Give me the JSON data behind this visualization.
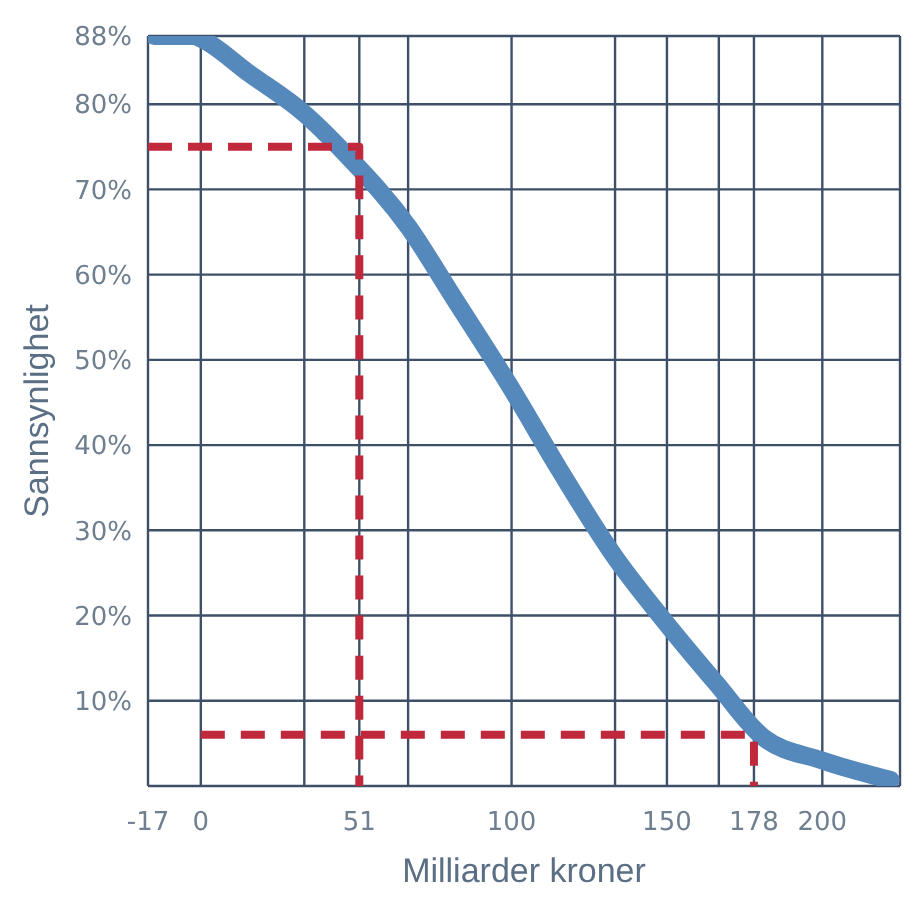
{
  "chart_data": {
    "type": "line",
    "xlabel": "Milliarder kroner",
    "ylabel": "Sannsynlighet",
    "xlim": [
      -17,
      225
    ],
    "ylim": [
      0,
      88
    ],
    "xticks": [
      -17,
      0,
      {
        "value": 33.3,
        "label": null
      },
      51,
      {
        "value": 66.7,
        "label": null
      },
      100,
      {
        "value": 133.3,
        "label": null
      },
      150,
      {
        "value": 166.7,
        "label": null
      },
      178,
      200
    ],
    "yticks": [
      {
        "value": 0,
        "label": null
      },
      {
        "value": 10,
        "label": "10%"
      },
      {
        "value": 20,
        "label": "20%"
      },
      {
        "value": 30,
        "label": "30%"
      },
      {
        "value": 40,
        "label": "40%"
      },
      {
        "value": 50,
        "label": "50%"
      },
      {
        "value": 60,
        "label": "60%"
      },
      {
        "value": 70,
        "label": "70%"
      },
      {
        "value": 80,
        "label": "80%"
      },
      {
        "value": 88,
        "label": "88%"
      }
    ],
    "grid": true,
    "marker": "none",
    "series": [
      {
        "color": "#5588bb",
        "line_style": "solid",
        "x": [
          -15,
          -2,
          0,
          15.6,
          33,
          47,
          67,
          81,
          100,
          115.6,
          133,
          150,
          166,
          181,
          200,
          222
        ],
        "values": [
          88,
          88,
          87.7,
          83.6,
          79,
          74,
          65.5,
          57.5,
          46.6,
          37,
          27,
          19,
          12,
          5.7,
          3,
          0.7
        ]
      },
      {
        "color": "#c0283c",
        "line_style": "dashed",
        "x": [
          -17,
          51,
          51
        ],
        "values": [
          75,
          75,
          0
        ]
      },
      {
        "color": "#c0283c",
        "line_style": "dashed",
        "x": [
          0,
          178,
          178
        ],
        "values": [
          6,
          6,
          0
        ]
      }
    ]
  }
}
